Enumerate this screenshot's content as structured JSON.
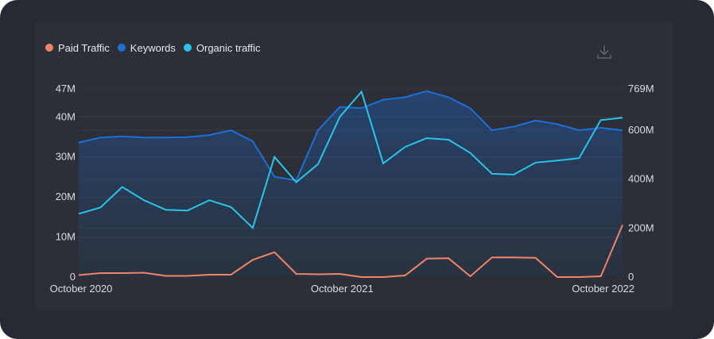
{
  "legend": {
    "items": [
      {
        "label": "Paid Traffic",
        "color": "#ee8468"
      },
      {
        "label": "Keywords",
        "color": "#1e6fd6"
      },
      {
        "label": "Organic traffic",
        "color": "#2ac4e8"
      }
    ]
  },
  "toolbar": {
    "download_icon": "download-icon"
  },
  "chart_data": {
    "type": "line",
    "x": [
      "Oct 2020",
      "Nov 2020",
      "Dec 2020",
      "Jan 2021",
      "Feb 2021",
      "Mar 2021",
      "Apr 2021",
      "May 2021",
      "Jun 2021",
      "Jul 2021",
      "Aug 2021",
      "Sep 2021",
      "Oct 2021",
      "Nov 2021",
      "Dec 2021",
      "Jan 2022",
      "Feb 2022",
      "Mar 2022",
      "Apr 2022",
      "May 2022",
      "Jun 2022",
      "Jul 2022",
      "Aug 2022",
      "Sep 2022",
      "Oct 2022",
      "Nov 2022"
    ],
    "x_tick_labels": [
      "October 2020",
      "October 2021",
      "October 2022"
    ],
    "left_axis": {
      "ticks": [
        "0",
        "10M",
        "20M",
        "30M",
        "40M",
        "47M"
      ],
      "ylim": [
        0,
        47000000
      ]
    },
    "right_axis": {
      "ticks": [
        "0",
        "200M",
        "400M",
        "600M",
        "769M"
      ],
      "ylim": [
        0,
        769000000
      ]
    },
    "series": [
      {
        "name": "Paid Traffic",
        "axis": "left",
        "color": "#ee8468",
        "values": [
          500000,
          1000000,
          1000000,
          1100000,
          300000,
          300000,
          600000,
          600000,
          4300000,
          6200000,
          800000,
          700000,
          800000,
          0,
          0,
          400000,
          4600000,
          4700000,
          200000,
          4900000,
          4900000,
          4800000,
          0,
          0,
          200000,
          13000000
        ]
      },
      {
        "name": "Keywords",
        "axis": "right",
        "color": "#1e6fd6",
        "values": [
          550000000,
          570000000,
          575000000,
          570000000,
          570000000,
          572000000,
          580000000,
          600000000,
          555000000,
          410000000,
          395000000,
          600000000,
          695000000,
          690000000,
          725000000,
          735000000,
          760000000,
          735000000,
          690000000,
          600000000,
          615000000,
          640000000,
          625000000,
          600000000,
          610000000,
          600000000
        ]
      },
      {
        "name": "Organic traffic",
        "axis": "left",
        "color": "#2ac4e8",
        "values": [
          15800000,
          17400000,
          22500000,
          19200000,
          16800000,
          16600000,
          19200000,
          17500000,
          12300000,
          30000000,
          23700000,
          28200000,
          40000000,
          46300000,
          28400000,
          32500000,
          34700000,
          34300000,
          31000000,
          25800000,
          25600000,
          28600000,
          29100000,
          29700000,
          39200000,
          39800000
        ]
      }
    ],
    "grid": true,
    "legend_position": "top-left"
  }
}
